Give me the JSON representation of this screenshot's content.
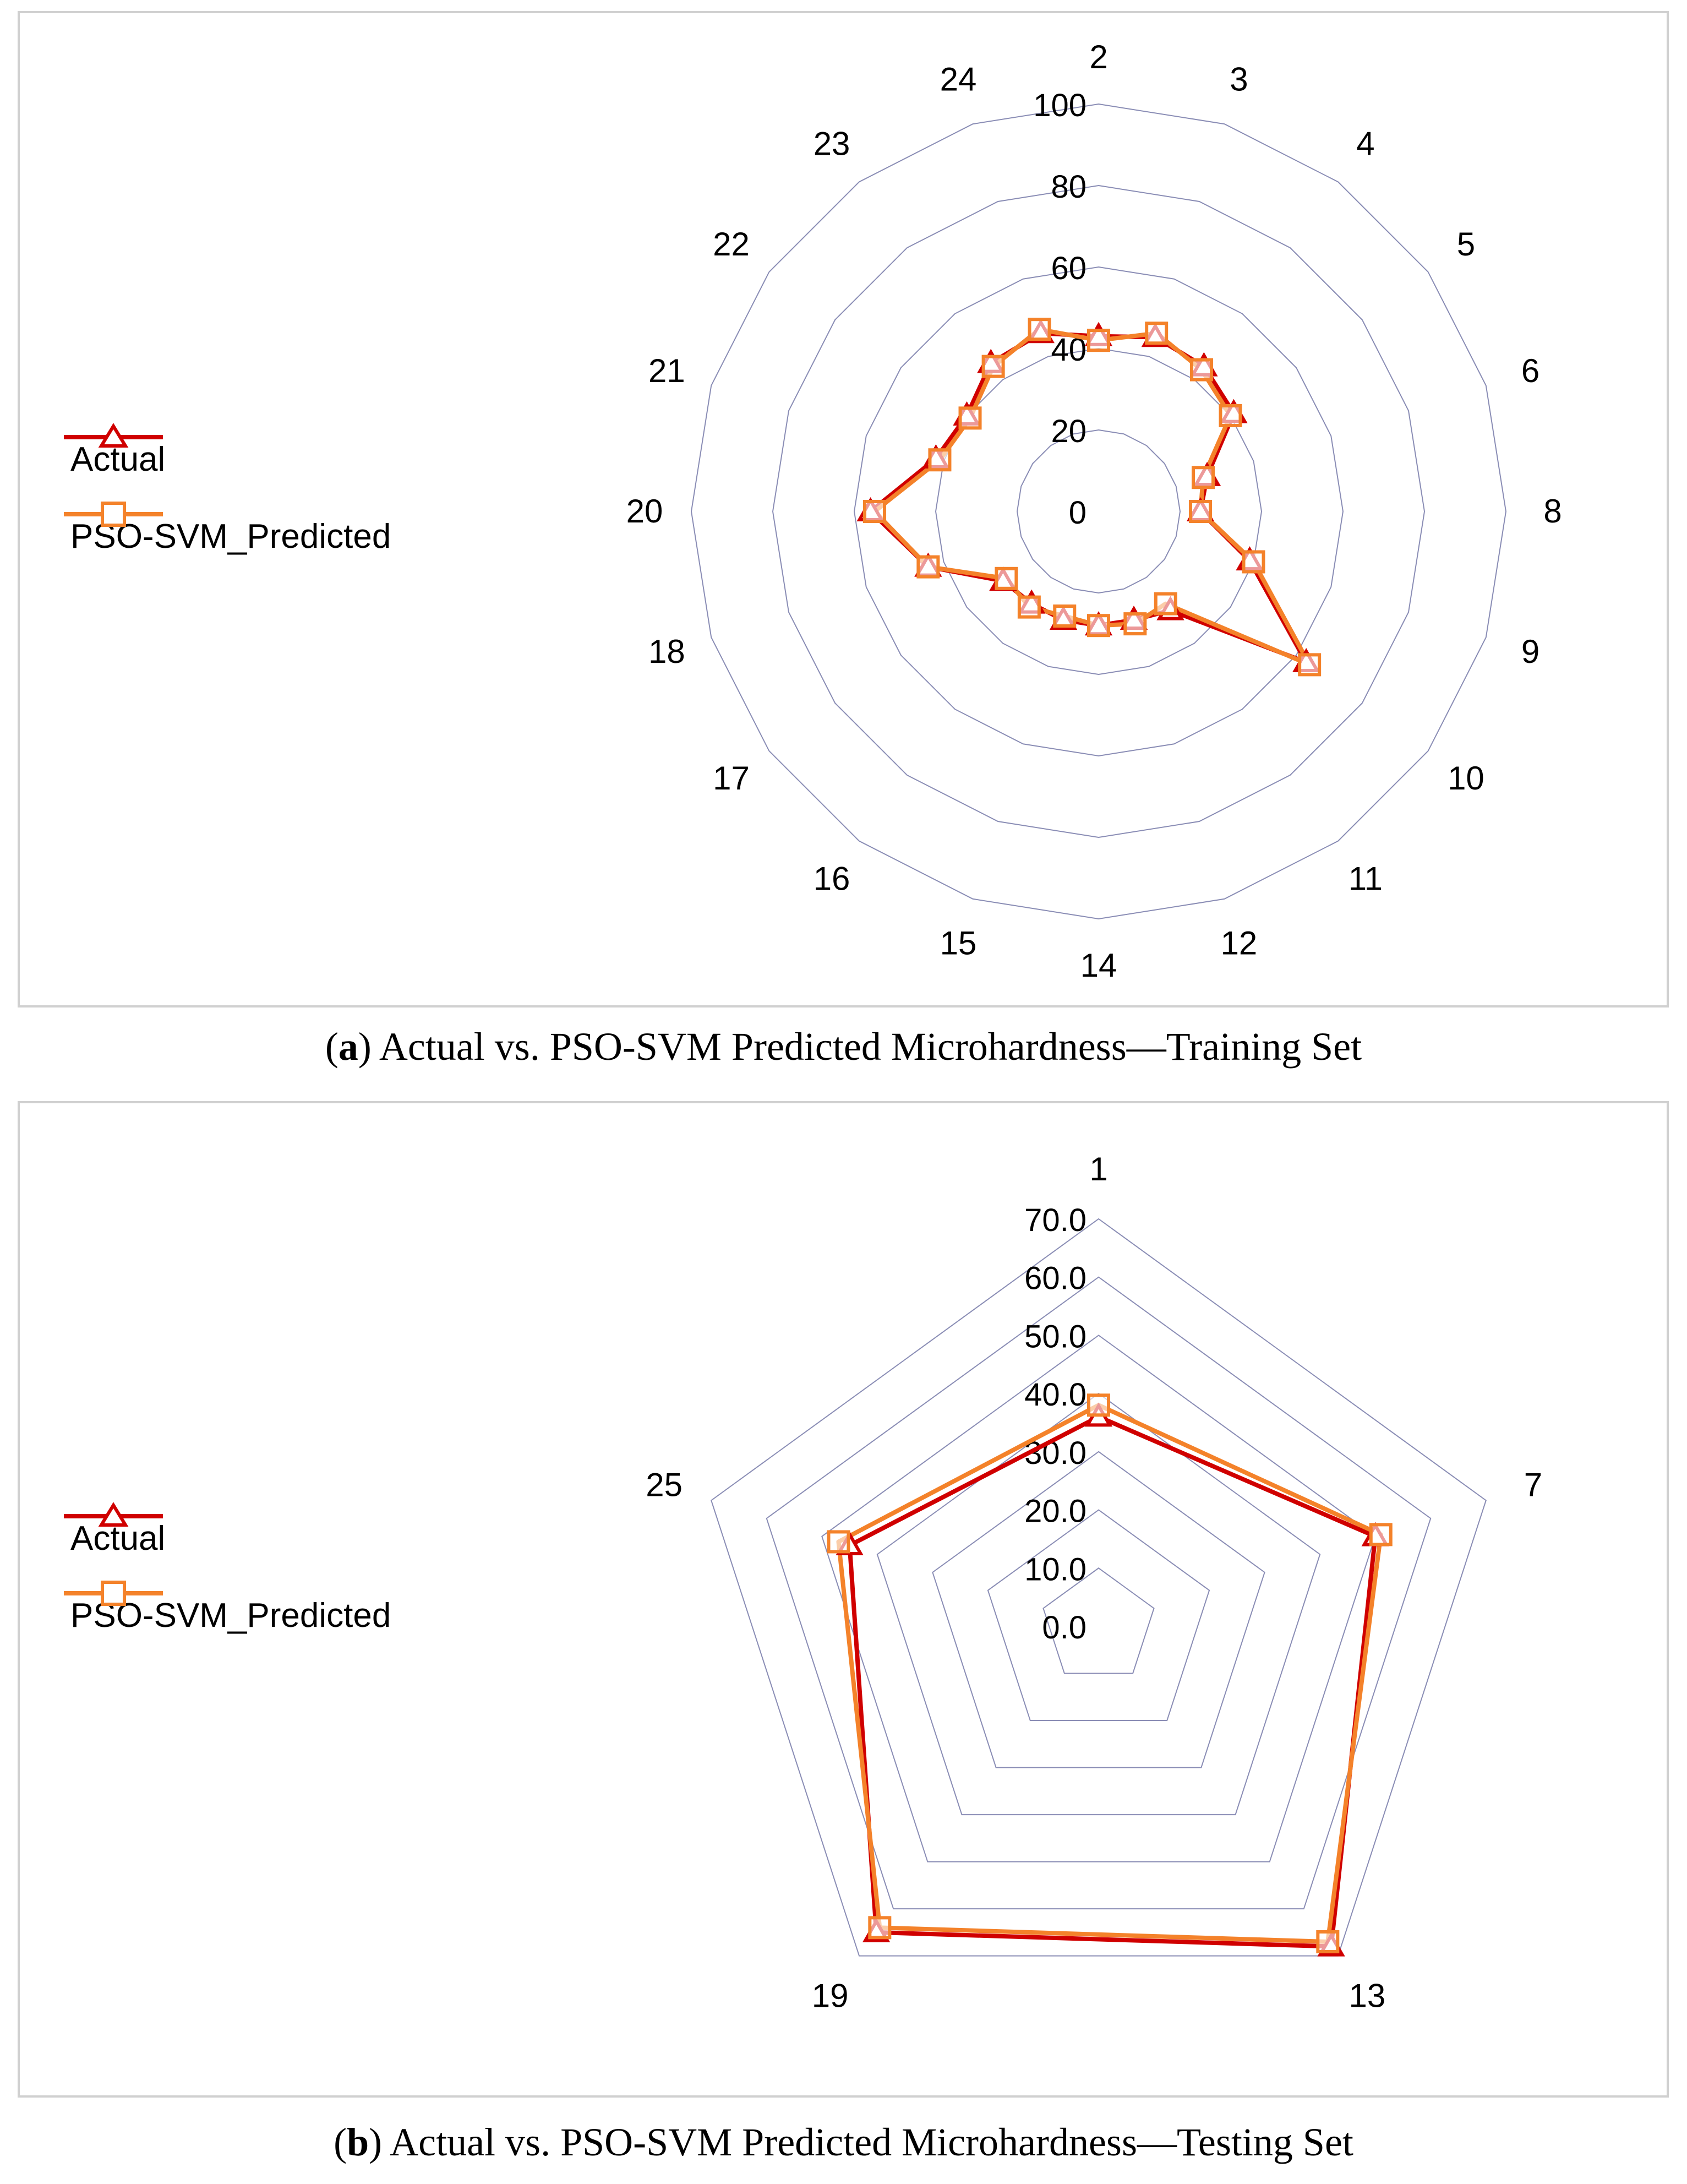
{
  "chart_data": [
    {
      "type": "radar",
      "panel": "a",
      "title": "Actual vs. PSO-SVM Predicted Microhardness—Training Set",
      "caption_label": "a",
      "categories": [
        "2",
        "3",
        "4",
        "5",
        "6",
        "8",
        "9",
        "10",
        "11",
        "12",
        "14",
        "15",
        "16",
        "17",
        "18",
        "20",
        "21",
        "22",
        "23",
        "24"
      ],
      "rlim": [
        0,
        100
      ],
      "r_ticks": [
        "0",
        "20",
        "40",
        "60",
        "80",
        "100"
      ],
      "legend_position": "left",
      "series": [
        {
          "name": "Actual",
          "color": "#d00000",
          "marker": "triangle",
          "values": [
            43,
            45,
            44,
            41,
            28,
            25,
            39,
            63,
            30,
            28,
            28,
            28,
            28,
            29,
            44,
            56,
            42,
            40,
            45,
            46
          ]
        },
        {
          "name": "PSO-SVM_Predicted",
          "color": "#f4822a",
          "marker": "square",
          "values": [
            42,
            46,
            43,
            40,
            27,
            25,
            40,
            64,
            28,
            29,
            28,
            27,
            29,
            28,
            44,
            55,
            41,
            39,
            44,
            47
          ]
        }
      ]
    },
    {
      "type": "radar",
      "panel": "b",
      "title": "Actual vs. PSO-SVM Predicted Microhardness—Testing Set",
      "caption_label": "b",
      "categories": [
        "1",
        "7",
        "13",
        "19",
        "25"
      ],
      "rlim": [
        0,
        70
      ],
      "r_ticks": [
        "0.0",
        "10.0",
        "20.0",
        "30.0",
        "40.0",
        "50.0",
        "60.0",
        "70.0"
      ],
      "legend_position": "left",
      "series": [
        {
          "name": "Actual",
          "color": "#d00000",
          "marker": "triangle",
          "values": [
            36,
            50,
            68,
            65,
            45
          ]
        },
        {
          "name": "PSO-SVM_Predicted",
          "color": "#f4822a",
          "marker": "square",
          "values": [
            38,
            51,
            67,
            64,
            47
          ]
        }
      ]
    }
  ]
}
